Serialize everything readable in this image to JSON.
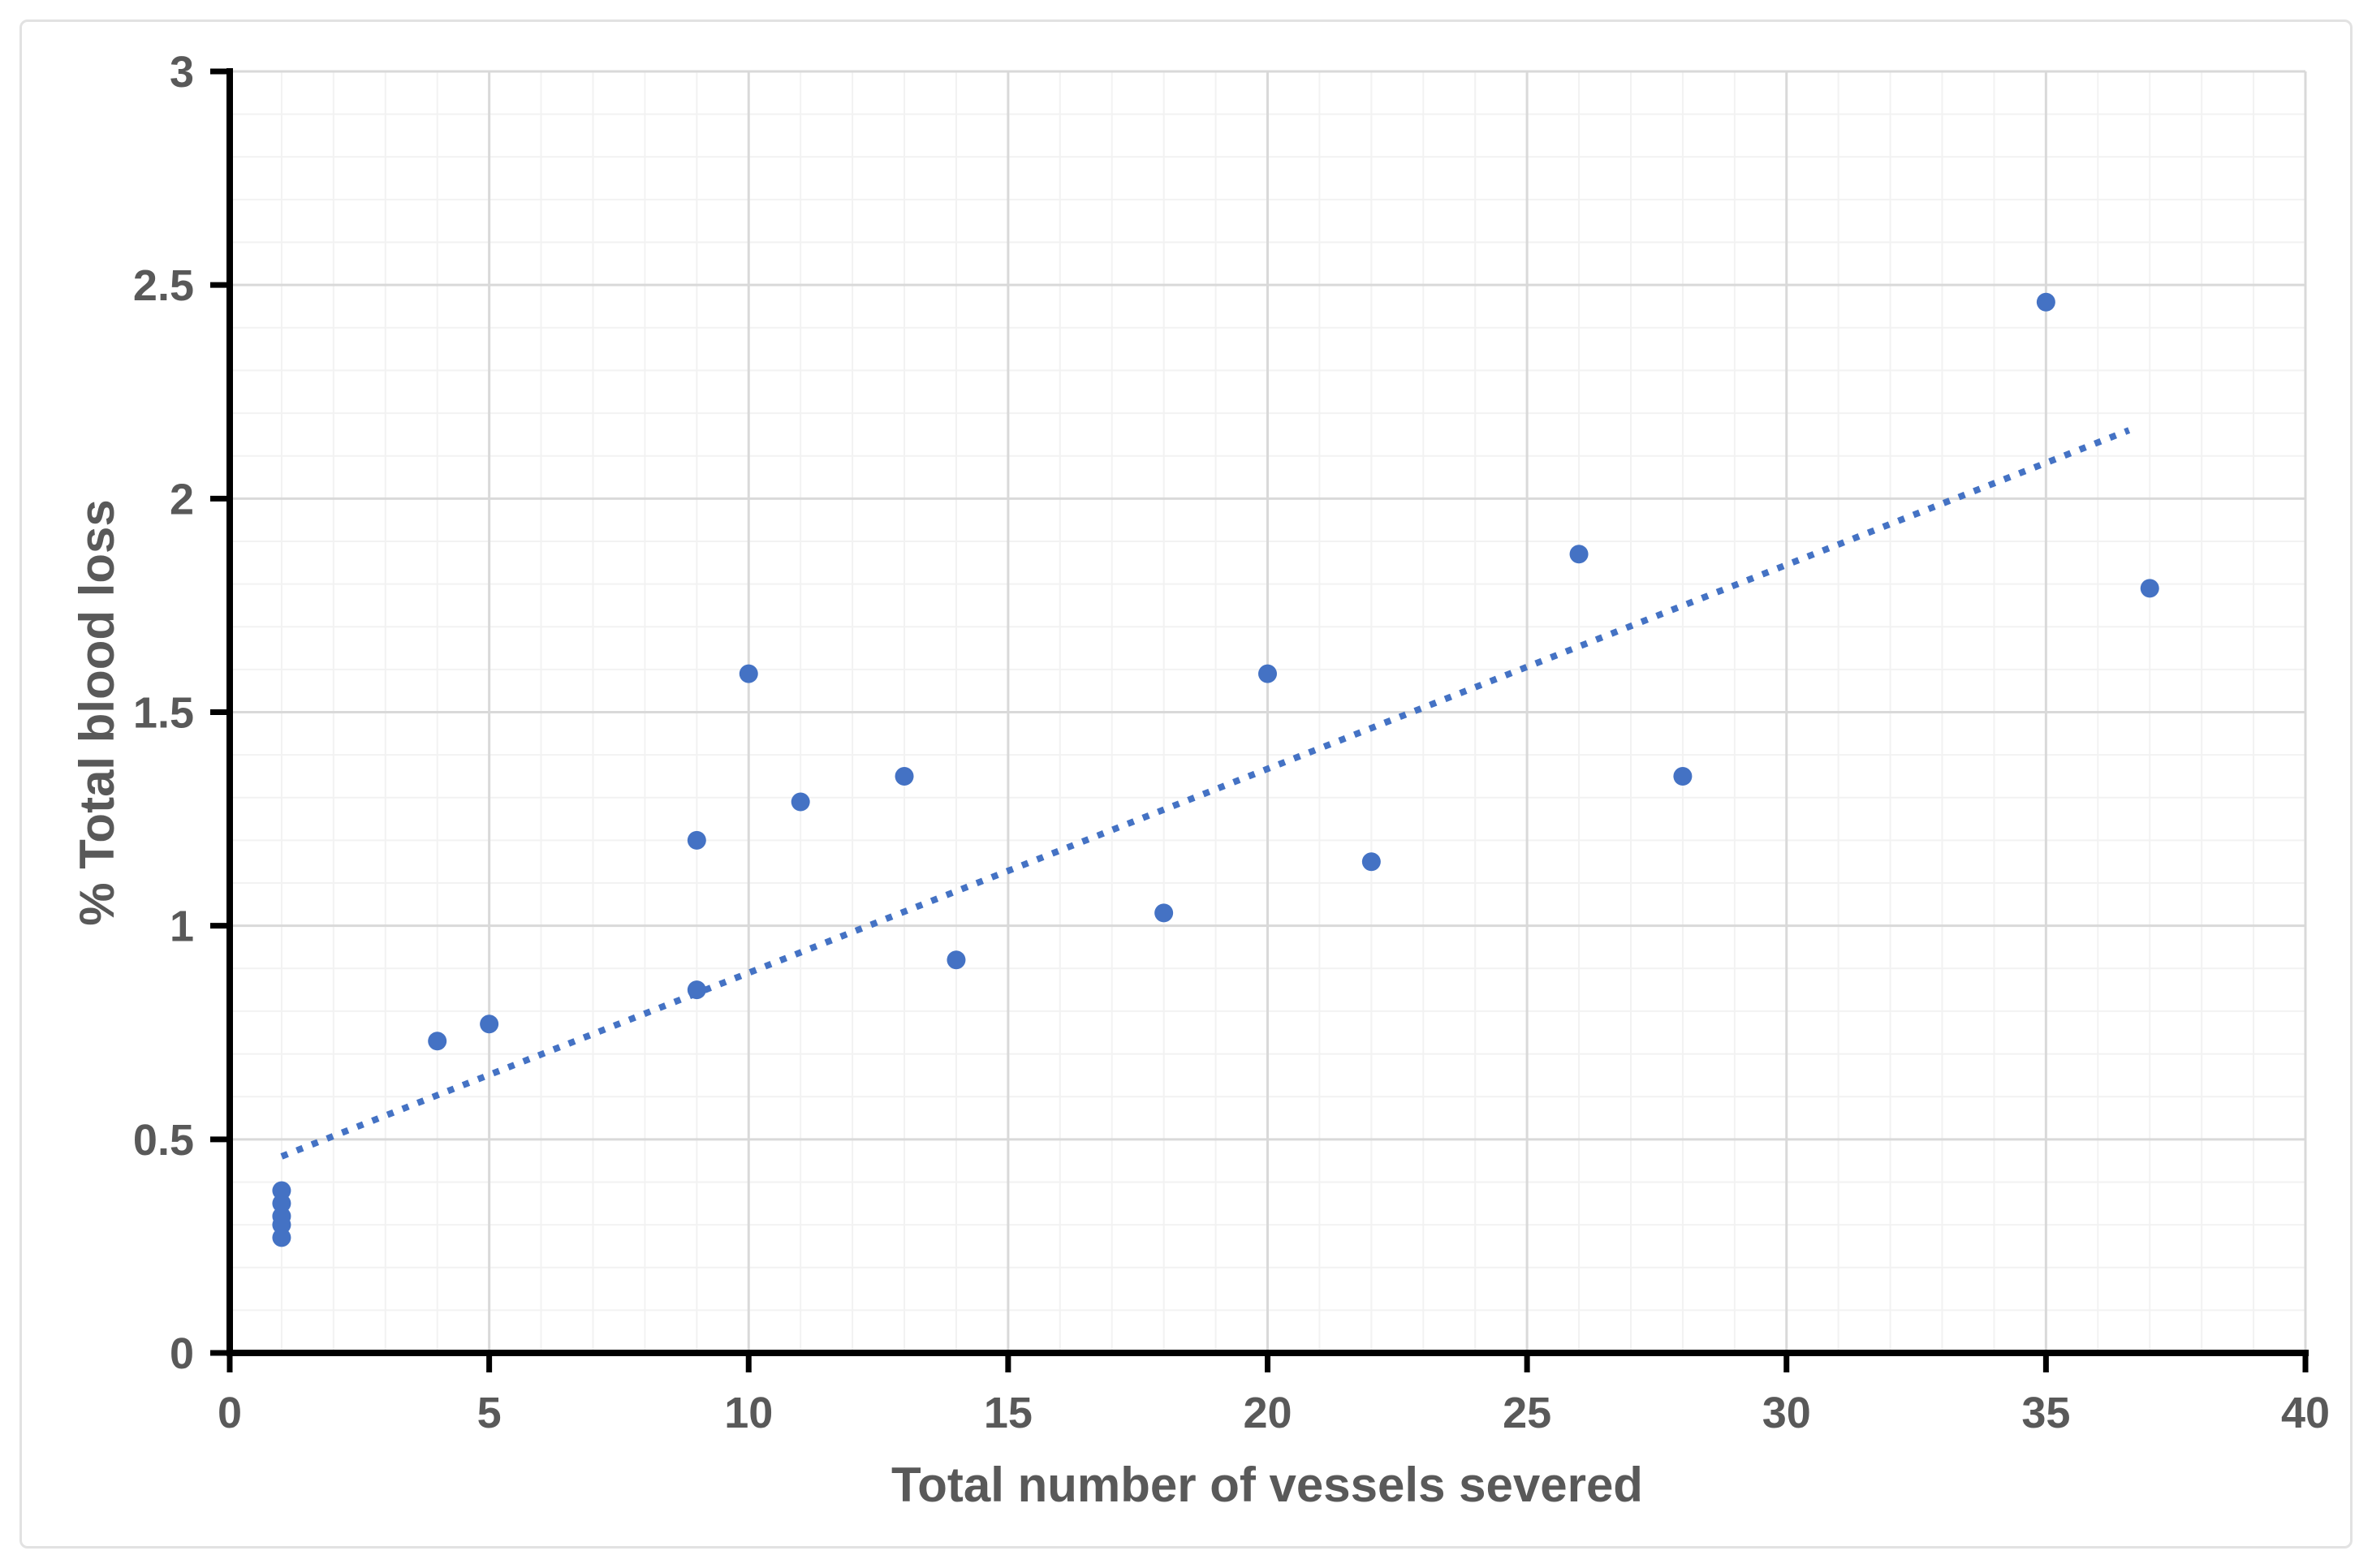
{
  "chart_data": {
    "type": "scatter",
    "title": "",
    "xlabel": "Total number of vessels severed",
    "ylabel": "% Total blood loss",
    "xlim": [
      0,
      40
    ],
    "ylim": [
      0,
      3
    ],
    "x_ticks": [
      0,
      5,
      10,
      15,
      20,
      25,
      30,
      35,
      40
    ],
    "x_tick_labels": [
      "0",
      "5",
      "10",
      "15",
      "20",
      "25",
      "30",
      "35",
      "40"
    ],
    "y_ticks": [
      0,
      0.5,
      1,
      1.5,
      2,
      2.5,
      3
    ],
    "y_tick_labels": [
      "0",
      "0.5",
      "1",
      "1.5",
      "2",
      "2.5",
      "3"
    ],
    "x_minor_step": 1,
    "y_minor_step": 0.1,
    "grid": {
      "major": true,
      "minor": true
    },
    "legend": "none",
    "points": [
      {
        "x": 1,
        "y": 0.38
      },
      {
        "x": 1,
        "y": 0.35
      },
      {
        "x": 1,
        "y": 0.32
      },
      {
        "x": 1,
        "y": 0.3
      },
      {
        "x": 1,
        "y": 0.27
      },
      {
        "x": 4,
        "y": 0.73
      },
      {
        "x": 5,
        "y": 0.77
      },
      {
        "x": 9,
        "y": 0.85
      },
      {
        "x": 9,
        "y": 1.2
      },
      {
        "x": 10,
        "y": 1.59
      },
      {
        "x": 11,
        "y": 1.29
      },
      {
        "x": 13,
        "y": 1.35
      },
      {
        "x": 14,
        "y": 0.92
      },
      {
        "x": 18,
        "y": 1.03
      },
      {
        "x": 20,
        "y": 1.59
      },
      {
        "x": 22,
        "y": 1.15
      },
      {
        "x": 26,
        "y": 1.87
      },
      {
        "x": 28,
        "y": 1.35
      },
      {
        "x": 35,
        "y": 2.46
      },
      {
        "x": 37,
        "y": 1.79
      }
    ],
    "trendline": {
      "style": "dotted",
      "x1": 1.0,
      "y1": 0.46,
      "x2": 36.6,
      "y2": 2.16
    },
    "colors": {
      "point": "#4472C4",
      "trend": "#4472C4",
      "axis": "#000000",
      "label": "#595959",
      "grid_major": "#D9D9D9",
      "grid_minor": "#F2F2F2",
      "frame": "#E2E2E2"
    }
  }
}
